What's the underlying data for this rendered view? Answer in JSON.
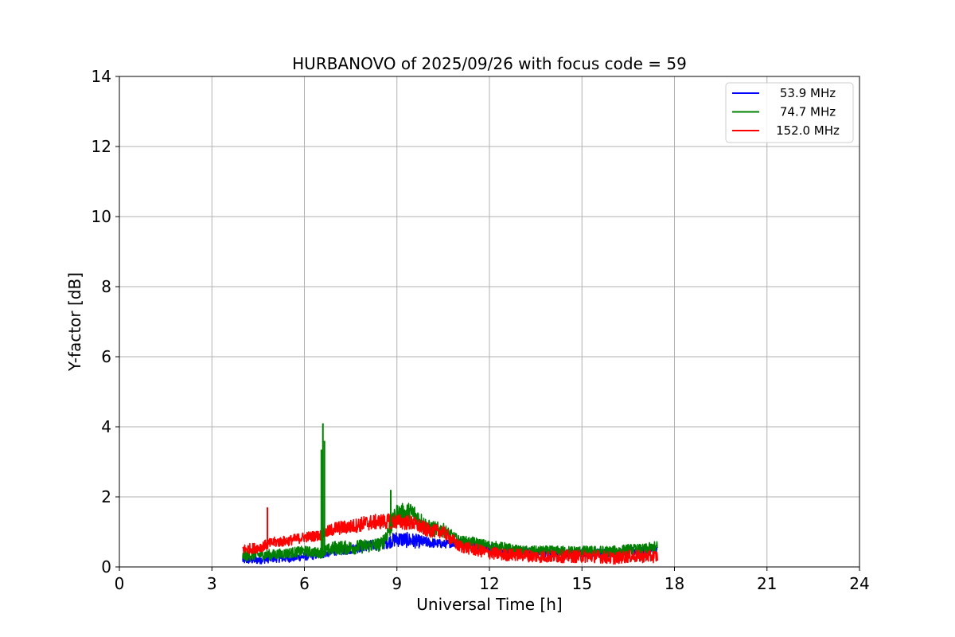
{
  "chart_data": {
    "type": "line",
    "title": "HURBANOVO of 2025/09/26 with focus code = 59",
    "xlabel": "Universal Time [h]",
    "ylabel": "Y-factor [dB]",
    "xlim": [
      0,
      24
    ],
    "ylim": [
      0,
      14
    ],
    "xticks": [
      0,
      3,
      6,
      9,
      12,
      15,
      18,
      21,
      24
    ],
    "yticks": [
      0,
      2,
      4,
      6,
      8,
      10,
      12,
      14
    ],
    "grid": true,
    "legend_position": "top-right",
    "series": [
      {
        "name": "53.9 MHz",
        "color": "#0000ff",
        "x": [
          4.0,
          4.5,
          5.0,
          5.5,
          6.0,
          6.5,
          7.0,
          7.5,
          8.0,
          8.5,
          9.0,
          9.5,
          10.0,
          10.5,
          11.0,
          11.5,
          12.0,
          12.5,
          13.0,
          13.5,
          14.0,
          14.5,
          15.0,
          15.5,
          16.0,
          16.5,
          17.0,
          17.45
        ],
        "y": [
          0.2,
          0.2,
          0.25,
          0.25,
          0.3,
          0.35,
          0.45,
          0.5,
          0.6,
          0.65,
          0.8,
          0.75,
          0.7,
          0.65,
          0.7,
          0.65,
          0.55,
          0.45,
          0.45,
          0.4,
          0.4,
          0.4,
          0.4,
          0.4,
          0.4,
          0.45,
          0.45,
          0.45
        ],
        "spread": [
          0.12,
          0.12,
          0.12,
          0.12,
          0.12,
          0.12,
          0.12,
          0.14,
          0.15,
          0.16,
          0.22,
          0.22,
          0.15,
          0.12,
          0.12,
          0.12,
          0.12,
          0.12,
          0.12,
          0.12,
          0.12,
          0.12,
          0.12,
          0.12,
          0.12,
          0.12,
          0.12,
          0.12
        ]
      },
      {
        "name": "74.7 MHz",
        "color": "#008000",
        "x": [
          4.0,
          4.5,
          5.0,
          5.5,
          6.0,
          6.5,
          7.0,
          7.5,
          8.0,
          8.5,
          9.0,
          9.5,
          10.0,
          10.5,
          11.0,
          11.5,
          12.0,
          12.5,
          13.0,
          13.5,
          14.0,
          14.5,
          15.0,
          15.5,
          16.0,
          16.5,
          17.0,
          17.45
        ],
        "y": [
          0.3,
          0.35,
          0.35,
          0.4,
          0.45,
          0.4,
          0.55,
          0.55,
          0.6,
          0.65,
          1.5,
          1.55,
          1.1,
          1.05,
          0.75,
          0.7,
          0.6,
          0.55,
          0.45,
          0.45,
          0.45,
          0.45,
          0.45,
          0.45,
          0.45,
          0.5,
          0.5,
          0.55
        ],
        "spread": [
          0.15,
          0.15,
          0.15,
          0.15,
          0.15,
          0.15,
          0.2,
          0.2,
          0.2,
          0.2,
          0.3,
          0.3,
          0.25,
          0.2,
          0.15,
          0.15,
          0.15,
          0.15,
          0.15,
          0.15,
          0.15,
          0.15,
          0.15,
          0.15,
          0.15,
          0.15,
          0.15,
          0.2
        ]
      },
      {
        "name": "152.0 MHz",
        "color": "#ff0000",
        "x": [
          4.0,
          4.5,
          5.0,
          5.5,
          6.0,
          6.5,
          7.0,
          7.5,
          8.0,
          8.5,
          9.0,
          9.5,
          10.0,
          10.5,
          11.0,
          11.5,
          12.0,
          12.5,
          13.0,
          13.5,
          14.0,
          14.5,
          15.0,
          15.5,
          16.0,
          16.5,
          17.0,
          17.45
        ],
        "y": [
          0.5,
          0.55,
          0.7,
          0.75,
          0.85,
          0.9,
          1.1,
          1.15,
          1.25,
          1.3,
          1.3,
          1.25,
          1.05,
          1.0,
          0.6,
          0.5,
          0.4,
          0.35,
          0.35,
          0.3,
          0.3,
          0.3,
          0.3,
          0.3,
          0.25,
          0.3,
          0.3,
          0.3
        ],
        "spread": [
          0.15,
          0.15,
          0.15,
          0.15,
          0.15,
          0.15,
          0.2,
          0.2,
          0.22,
          0.22,
          0.22,
          0.22,
          0.2,
          0.18,
          0.18,
          0.18,
          0.18,
          0.18,
          0.18,
          0.18,
          0.18,
          0.18,
          0.18,
          0.18,
          0.18,
          0.18,
          0.18,
          0.18
        ]
      }
    ],
    "spikes": [
      {
        "series": "152.0 MHz",
        "x": 4.8,
        "y": 1.7
      },
      {
        "series": "74.7 MHz",
        "x": 6.55,
        "y": 3.35
      },
      {
        "series": "74.7 MHz",
        "x": 6.6,
        "y": 4.1
      },
      {
        "series": "74.7 MHz",
        "x": 6.65,
        "y": 3.6
      },
      {
        "series": "74.7 MHz",
        "x": 8.8,
        "y": 2.2
      }
    ]
  }
}
